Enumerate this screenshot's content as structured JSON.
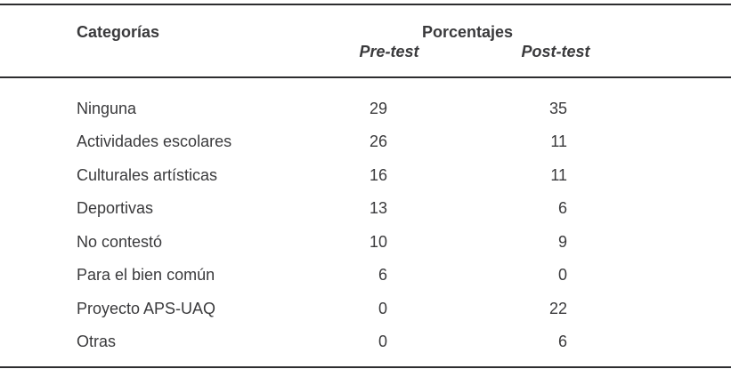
{
  "table": {
    "header": {
      "categories_label": "Categorías",
      "group_label": "Porcentajes",
      "pre_label": "Pre-test",
      "post_label": "Post-test"
    },
    "rows": [
      {
        "category": "Ninguna",
        "pre": "29",
        "post": "35"
      },
      {
        "category": "Actividades escolares",
        "pre": "26",
        "post": "11"
      },
      {
        "category": "Culturales artísticas",
        "pre": "16",
        "post": "11"
      },
      {
        "category": "Deportivas",
        "pre": "13",
        "post": "6"
      },
      {
        "category": "No contestó",
        "pre": "10",
        "post": "9"
      },
      {
        "category": "Para el bien común",
        "pre": "6",
        "post": "0"
      },
      {
        "category": "Proyecto APS-UAQ",
        "pre": "0",
        "post": "22"
      },
      {
        "category": "Otras",
        "pre": "0",
        "post": "6"
      }
    ]
  },
  "colors": {
    "text": "#3a3a3c",
    "rule": "#2d2d2f",
    "background": "#ffffff"
  },
  "chart_data": {
    "type": "table",
    "columns": [
      "Categorías",
      "Porcentajes Pre-test",
      "Porcentajes Post-test"
    ],
    "rows": [
      [
        "Ninguna",
        29,
        35
      ],
      [
        "Actividades escolares",
        26,
        11
      ],
      [
        "Culturales artísticas",
        16,
        11
      ],
      [
        "Deportivas",
        13,
        6
      ],
      [
        "No contestó",
        10,
        9
      ],
      [
        "Para el bien común",
        6,
        0
      ],
      [
        "Proyecto APS-UAQ",
        0,
        22
      ],
      [
        "Otras",
        0,
        6
      ]
    ]
  }
}
